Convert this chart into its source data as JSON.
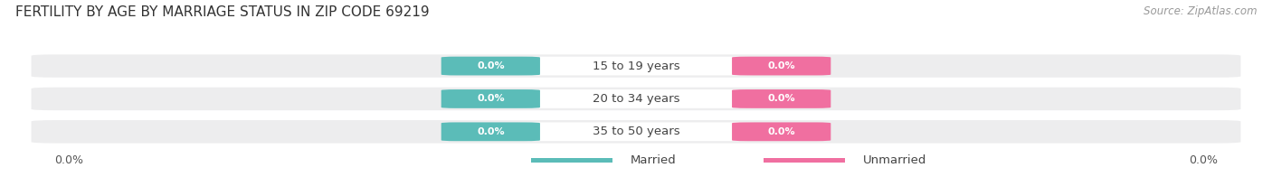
{
  "title": "FERTILITY BY AGE BY MARRIAGE STATUS IN ZIP CODE 69219",
  "source": "Source: ZipAtlas.com",
  "categories": [
    "15 to 19 years",
    "20 to 34 years",
    "35 to 50 years"
  ],
  "married_values": [
    0.0,
    0.0,
    0.0
  ],
  "unmarried_values": [
    0.0,
    0.0,
    0.0
  ],
  "married_color": "#5bbcb8",
  "unmarried_color": "#f06fa0",
  "bar_bg_color": "#ededee",
  "title_fontsize": 11,
  "source_fontsize": 8.5,
  "cat_fontsize": 9.5,
  "val_fontsize": 8,
  "tick_fontsize": 9,
  "legend_married": "Married",
  "legend_unmarried": "Unmarried",
  "background_color": "#ffffff",
  "left_label": "0.0%",
  "right_label": "0.0%"
}
